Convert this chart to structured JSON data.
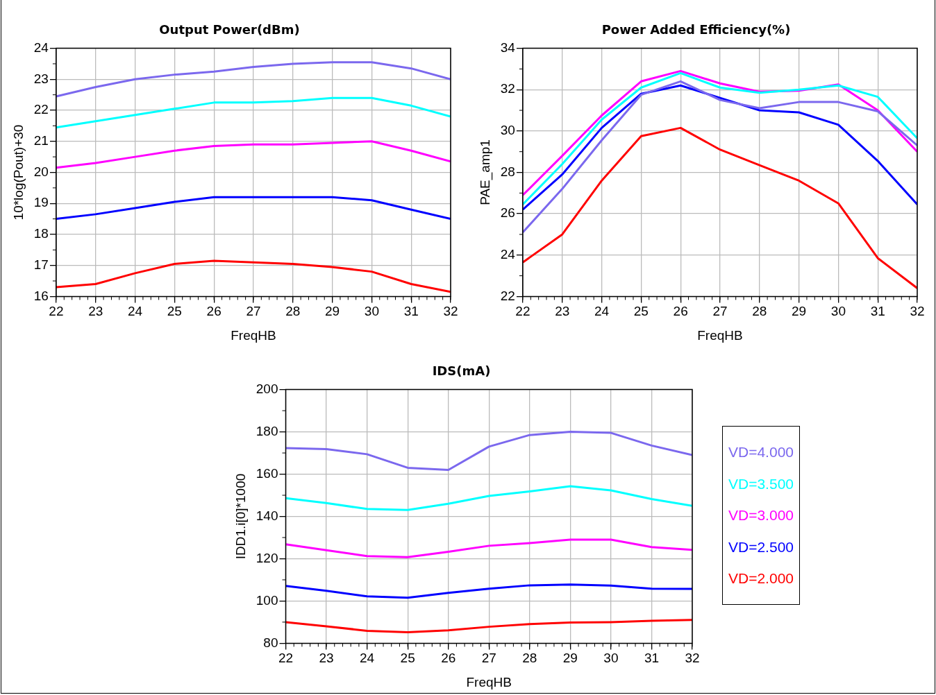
{
  "chart_data": [
    {
      "type": "line",
      "title": "Output Power(dBm)",
      "xlabel": "FreqHB",
      "ylabel": "10*log(Pout)+30",
      "x": [
        22,
        23,
        24,
        25,
        26,
        27,
        28,
        29,
        30,
        31,
        32
      ],
      "xlim": [
        22,
        32
      ],
      "xticks": [
        22,
        23,
        24,
        25,
        26,
        27,
        28,
        29,
        30,
        31,
        32
      ],
      "ylim": [
        16,
        24
      ],
      "yticks": [
        16,
        17,
        18,
        19,
        20,
        21,
        22,
        23,
        24
      ],
      "grid": true,
      "legend": false,
      "marker": "none",
      "line_style": "solid",
      "series": [
        {
          "color": "#7b68ee",
          "values": [
            22.45,
            22.75,
            23.0,
            23.15,
            23.25,
            23.4,
            23.5,
            23.55,
            23.55,
            23.35,
            23.0
          ]
        },
        {
          "color": "#00ffff",
          "values": [
            21.45,
            21.65,
            21.85,
            22.05,
            22.25,
            22.25,
            22.3,
            22.4,
            22.4,
            22.15,
            21.8
          ]
        },
        {
          "color": "#ff00ff",
          "values": [
            20.15,
            20.3,
            20.5,
            20.7,
            20.85,
            20.9,
            20.9,
            20.95,
            21.0,
            20.7,
            20.35
          ]
        },
        {
          "color": "#0000ff",
          "values": [
            18.5,
            18.65,
            18.85,
            19.05,
            19.2,
            19.2,
            19.2,
            19.2,
            19.1,
            18.8,
            18.5
          ]
        },
        {
          "color": "#ff0000",
          "values": [
            16.3,
            16.4,
            16.75,
            17.05,
            17.15,
            17.1,
            17.05,
            16.95,
            16.8,
            16.4,
            16.15
          ]
        }
      ]
    },
    {
      "type": "line",
      "title": "Power Added Efficiency(%)",
      "xlabel": "FreqHB",
      "ylabel": "PAE_amp1",
      "x": [
        22,
        23,
        24,
        25,
        26,
        27,
        28,
        29,
        30,
        31,
        32
      ],
      "xlim": [
        22,
        32
      ],
      "xticks": [
        22,
        23,
        24,
        25,
        26,
        27,
        28,
        29,
        30,
        31,
        32
      ],
      "ylim": [
        22,
        34
      ],
      "yticks": [
        22,
        24,
        26,
        28,
        30,
        32,
        34
      ],
      "grid": true,
      "legend": false,
      "marker": "none",
      "line_style": "solid",
      "series": [
        {
          "color": "#7b68ee",
          "values": [
            25.1,
            27.2,
            29.55,
            31.75,
            32.4,
            31.5,
            31.1,
            31.4,
            31.4,
            30.95,
            29.3
          ]
        },
        {
          "color": "#00ffff",
          "values": [
            26.45,
            28.4,
            30.55,
            32.1,
            32.8,
            32.1,
            31.85,
            32.0,
            32.2,
            31.65,
            29.65
          ]
        },
        {
          "color": "#ff00ff",
          "values": [
            26.9,
            28.8,
            30.75,
            32.4,
            32.9,
            32.3,
            31.9,
            31.95,
            32.25,
            31.0,
            29.0
          ]
        },
        {
          "color": "#0000ff",
          "values": [
            26.2,
            27.9,
            30.15,
            31.8,
            32.2,
            31.6,
            31.0,
            30.9,
            30.3,
            28.55,
            26.45
          ]
        },
        {
          "color": "#ff0000",
          "values": [
            23.65,
            25.0,
            27.6,
            29.75,
            30.15,
            29.1,
            28.35,
            27.6,
            26.5,
            23.85,
            22.4
          ]
        }
      ]
    },
    {
      "type": "line",
      "title": "IDS(mA)",
      "xlabel": "FreqHB",
      "ylabel": "IDD1.i[0]*1000",
      "x": [
        22,
        23,
        24,
        25,
        26,
        27,
        28,
        29,
        30,
        31,
        32
      ],
      "xlim": [
        22,
        32
      ],
      "xticks": [
        22,
        23,
        24,
        25,
        26,
        27,
        28,
        29,
        30,
        31,
        32
      ],
      "ylim": [
        80,
        200
      ],
      "yticks": [
        80,
        100,
        120,
        140,
        160,
        180,
        200
      ],
      "grid": true,
      "legend": "right",
      "marker": "none",
      "line_style": "solid",
      "series": [
        {
          "name": "VD=4.000",
          "color": "#7b68ee",
          "values": [
            172.3,
            171.8,
            169.4,
            163,
            162,
            173,
            178.5,
            180,
            179.5,
            173.5,
            169
          ]
        },
        {
          "name": "VD=3.500",
          "color": "#00ffff",
          "values": [
            148.6,
            146.3,
            143.5,
            143,
            146,
            149.7,
            151.8,
            154.3,
            152.3,
            148.2,
            145
          ]
        },
        {
          "name": "VD=3.000",
          "color": "#ff00ff",
          "values": [
            126.8,
            124,
            121.2,
            120.7,
            123.3,
            126.1,
            127.4,
            129,
            129,
            125.5,
            124.2
          ]
        },
        {
          "name": "VD=2.500",
          "color": "#0000ff",
          "values": [
            107.1,
            104.8,
            102.2,
            101.5,
            103.8,
            105.8,
            107.4,
            107.8,
            107.3,
            105.8,
            105.7
          ]
        },
        {
          "name": "VD=2.000",
          "color": "#ff0000",
          "values": [
            90,
            88,
            85.9,
            85.2,
            86.1,
            87.8,
            89.1,
            89.8,
            90,
            90.6,
            91
          ]
        }
      ]
    }
  ]
}
